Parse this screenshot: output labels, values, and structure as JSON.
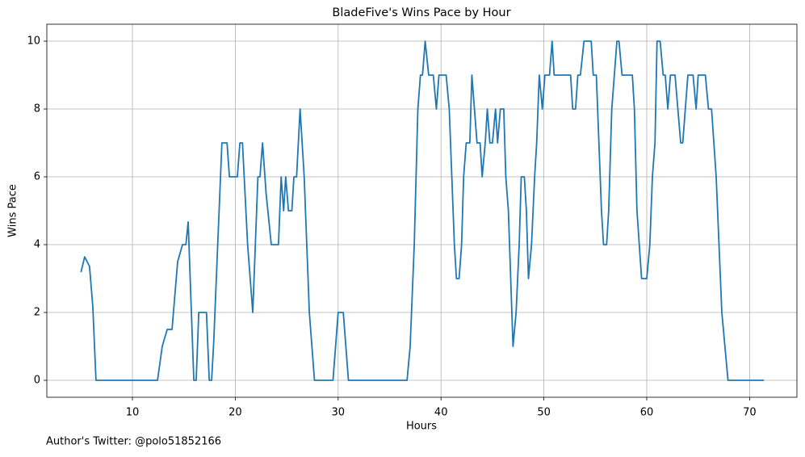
{
  "chart_data": {
    "type": "line",
    "title": "BladeFive's Wins Pace by Hour",
    "x_label": "Hours",
    "y_label": "Wins Pace",
    "footnote": "Author's Twitter: @polo51852166",
    "color": "#1f77b4",
    "grid": true,
    "xlim": [
      1.68,
      74.6
    ],
    "ylim": [
      -0.5,
      10.5
    ],
    "xticks": [
      10,
      20,
      30,
      40,
      50,
      60,
      70
    ],
    "yticks": [
      0,
      2,
      4,
      6,
      8,
      10
    ],
    "x": [
      5.0,
      5.36,
      5.83,
      6.15,
      6.46,
      12.44,
      12.9,
      13.38,
      13.85,
      14.4,
      14.87,
      15.2,
      15.42,
      15.97,
      16.2,
      16.45,
      17.2,
      17.47,
      17.7,
      17.9,
      18.7,
      19.2,
      19.43,
      20.2,
      20.45,
      20.7,
      21.2,
      21.7,
      21.95,
      22.2,
      22.4,
      22.65,
      23.0,
      23.5,
      24.2,
      24.46,
      24.7,
      24.9,
      25.17,
      25.5,
      25.7,
      25.96,
      26.3,
      26.7,
      27.2,
      27.7,
      29.5,
      30.0,
      30.5,
      31.0,
      36.7,
      37.0,
      37.4,
      37.75,
      38.0,
      38.2,
      38.46,
      38.8,
      39.25,
      39.55,
      39.8,
      40.5,
      40.8,
      41.3,
      41.5,
      41.76,
      42.0,
      42.2,
      42.45,
      42.8,
      43.0,
      43.25,
      43.5,
      43.8,
      44.0,
      44.3,
      44.5,
      44.75,
      45.0,
      45.3,
      45.5,
      45.77,
      46.1,
      46.3,
      46.55,
      47.0,
      47.3,
      47.6,
      47.8,
      48.1,
      48.3,
      48.5,
      48.8,
      49.1,
      49.3,
      49.55,
      49.85,
      50.1,
      50.55,
      50.8,
      51.0,
      52.6,
      52.8,
      53.08,
      53.3,
      53.55,
      53.9,
      54.6,
      54.8,
      55.1,
      55.6,
      55.8,
      56.1,
      56.3,
      56.6,
      57.1,
      57.3,
      57.6,
      58.6,
      58.8,
      59.05,
      59.5,
      60.0,
      60.3,
      60.55,
      60.8,
      61.0,
      61.3,
      61.6,
      61.8,
      62.05,
      62.3,
      62.75,
      63.3,
      63.5,
      64.0,
      64.5,
      64.8,
      65.0,
      65.7,
      66.0,
      66.3,
      66.75,
      67.3,
      67.9,
      71.4
    ],
    "values": [
      3.19,
      3.64,
      3.36,
      2.17,
      0,
      0,
      1,
      1.5,
      1.5,
      3.5,
      4,
      4,
      4.67,
      0,
      0,
      2,
      2,
      0,
      0,
      1.1,
      7,
      7,
      6,
      6,
      7,
      7,
      4,
      2,
      4,
      6,
      6,
      7,
      5.5,
      4,
      4,
      6,
      5,
      6,
      5,
      5,
      6,
      6,
      8,
      6,
      2,
      0,
      0,
      2,
      2,
      0,
      0,
      1,
      4,
      8,
      9,
      9,
      10,
      9,
      9,
      8,
      9,
      9,
      8,
      4,
      3,
      3,
      4,
      6,
      7,
      7,
      9,
      8,
      7,
      7,
      6,
      7,
      8,
      7,
      7,
      8,
      7,
      8,
      8,
      6,
      5,
      1,
      2,
      4,
      6,
      6,
      5,
      3,
      4,
      6,
      7,
      9,
      8,
      9,
      9,
      10,
      9,
      9,
      8,
      8,
      9,
      9,
      10,
      10,
      9,
      9,
      5,
      4,
      4,
      5,
      8,
      10,
      10,
      9,
      9,
      8,
      5,
      3,
      3,
      4,
      6,
      7,
      10,
      10,
      9,
      9,
      8,
      9,
      9,
      7,
      7,
      9,
      9,
      8,
      9,
      9,
      8,
      8,
      6,
      2,
      0,
      0
    ]
  }
}
